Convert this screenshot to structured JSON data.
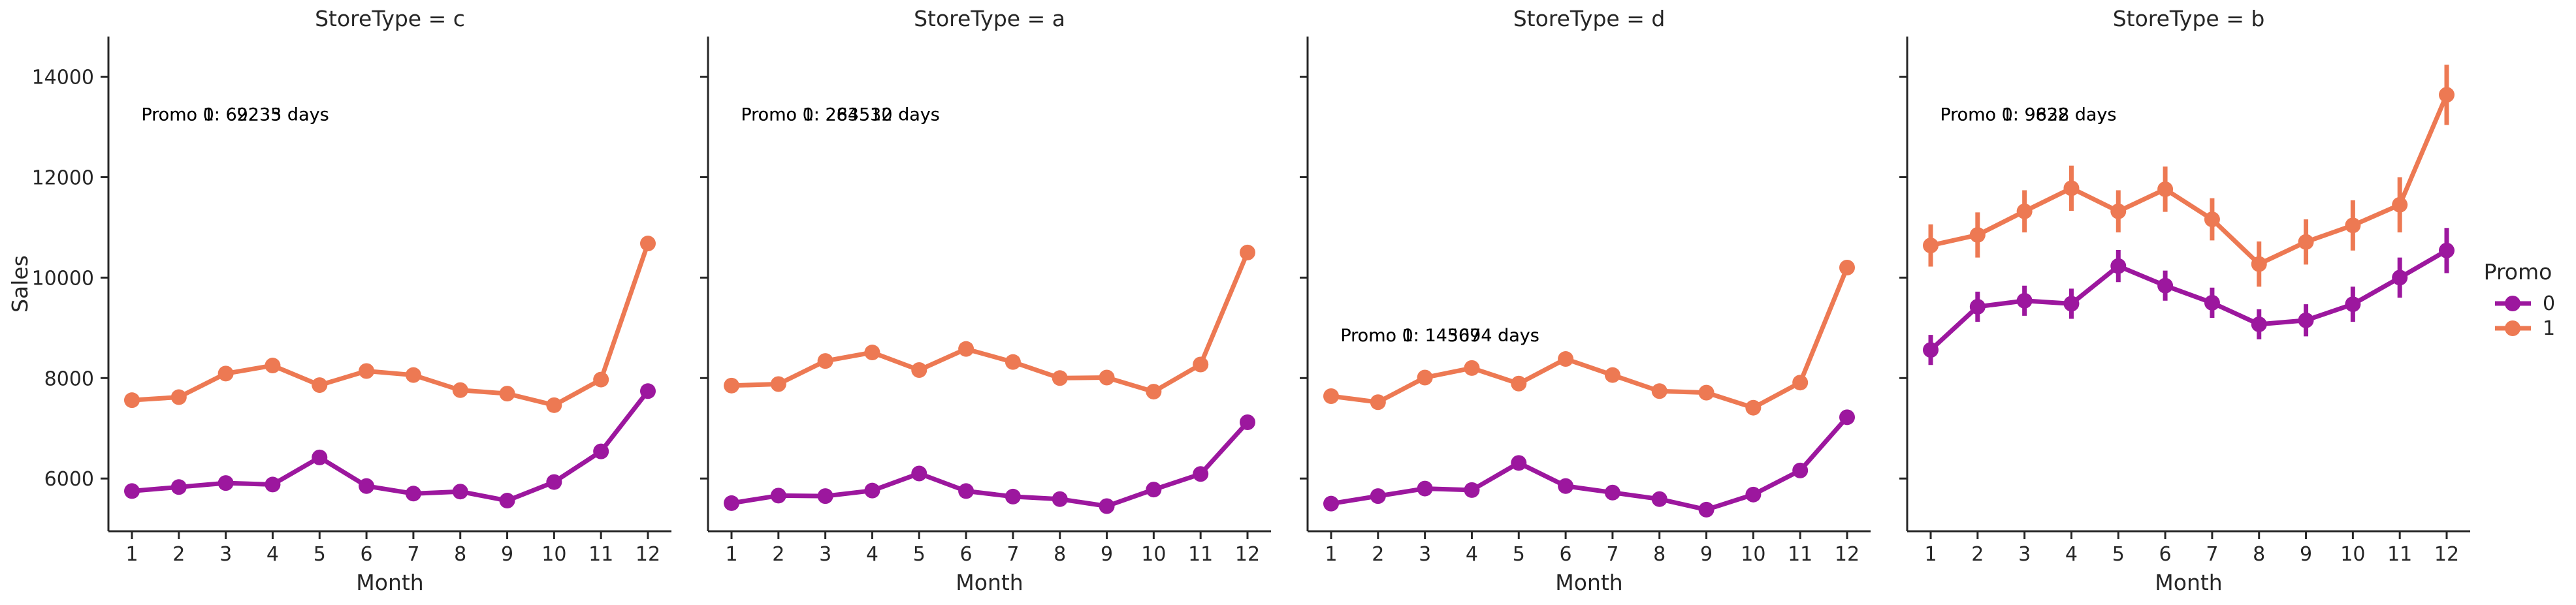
{
  "colors": {
    "promo_0": "#9c179e",
    "promo_1": "#ed7953",
    "axis": "#262626"
  },
  "legend": {
    "title": "Promo",
    "items": [
      "0",
      "1"
    ]
  },
  "chart_data": [
    {
      "type": "line",
      "title": "StoreType = c",
      "xlabel": "Month",
      "ylabel": "Sales",
      "categories": [
        "1",
        "2",
        "3",
        "4",
        "5",
        "6",
        "7",
        "8",
        "9",
        "10",
        "11",
        "12"
      ],
      "ylim": [
        4950,
        14800
      ],
      "yticks": [
        6000,
        8000,
        10000,
        12000,
        14000
      ],
      "annotations": [
        {
          "text": "Promo 0: 69235 days",
          "x": 1.2,
          "y": 13250
        },
        {
          "text": "Promo 1: 62233 days",
          "x": 1.2,
          "y": 13250
        }
      ],
      "series": [
        {
          "name": "0",
          "values": [
            5750,
            5830,
            5910,
            5880,
            6420,
            5850,
            5700,
            5740,
            5560,
            5930,
            6540,
            7740
          ],
          "err": [
            40,
            40,
            40,
            40,
            50,
            40,
            40,
            40,
            40,
            40,
            50,
            60
          ]
        },
        {
          "name": "1",
          "values": [
            7560,
            7620,
            8090,
            8250,
            7860,
            8140,
            8060,
            7760,
            7690,
            7460,
            7970,
            10680
          ],
          "err": [
            50,
            50,
            60,
            60,
            60,
            60,
            60,
            60,
            60,
            60,
            60,
            150
          ]
        }
      ]
    },
    {
      "type": "line",
      "title": "StoreType = a",
      "xlabel": "Month",
      "ylabel": "",
      "categories": [
        "1",
        "2",
        "3",
        "4",
        "5",
        "6",
        "7",
        "8",
        "9",
        "10",
        "11",
        "12"
      ],
      "ylim": [
        4950,
        14800
      ],
      "yticks": [
        6000,
        8000,
        10000,
        12000,
        14000
      ],
      "annotations": [
        {
          "text": "Promo 0: 263532 days",
          "x": 1.2,
          "y": 13250
        },
        {
          "text": "Promo 1: 284510 days",
          "x": 1.2,
          "y": 13250
        }
      ],
      "series": [
        {
          "name": "0",
          "values": [
            5510,
            5660,
            5650,
            5760,
            6100,
            5750,
            5640,
            5590,
            5450,
            5780,
            6090,
            7120
          ],
          "err": [
            20,
            20,
            20,
            20,
            30,
            20,
            20,
            20,
            20,
            20,
            30,
            40
          ]
        },
        {
          "name": "1",
          "values": [
            7850,
            7880,
            8340,
            8510,
            8160,
            8580,
            8320,
            8000,
            8010,
            7730,
            8270,
            10500
          ],
          "err": [
            30,
            30,
            30,
            30,
            30,
            30,
            30,
            30,
            30,
            30,
            30,
            60
          ]
        }
      ]
    },
    {
      "type": "line",
      "title": "StoreType = d",
      "xlabel": "Month",
      "ylabel": "",
      "categories": [
        "1",
        "2",
        "3",
        "4",
        "5",
        "6",
        "7",
        "8",
        "9",
        "10",
        "11",
        "12"
      ],
      "ylim": [
        4950,
        14800
      ],
      "yticks": [
        6000,
        8000,
        10000,
        12000,
        14000
      ],
      "annotations": [
        {
          "text": "Promo 0: 145694 days",
          "x": 1.2,
          "y": 8850
        },
        {
          "text": "Promo 1: 143074 days",
          "x": 1.2,
          "y": 8850
        }
      ],
      "series": [
        {
          "name": "0",
          "values": [
            5500,
            5650,
            5800,
            5770,
            6310,
            5850,
            5720,
            5590,
            5380,
            5680,
            6160,
            7220
          ],
          "err": [
            30,
            30,
            30,
            30,
            30,
            30,
            30,
            30,
            30,
            30,
            30,
            50
          ]
        },
        {
          "name": "1",
          "values": [
            7640,
            7520,
            8010,
            8200,
            7890,
            8380,
            8060,
            7740,
            7710,
            7410,
            7910,
            10200
          ],
          "err": [
            30,
            30,
            30,
            30,
            30,
            30,
            30,
            30,
            30,
            30,
            30,
            80
          ]
        }
      ]
    },
    {
      "type": "line",
      "title": "StoreType = b",
      "xlabel": "Month",
      "ylabel": "",
      "categories": [
        "1",
        "2",
        "3",
        "4",
        "5",
        "6",
        "7",
        "8",
        "9",
        "10",
        "11",
        "12"
      ],
      "ylim": [
        4950,
        14800
      ],
      "yticks": [
        6000,
        8000,
        10000,
        12000,
        14000
      ],
      "annotations": [
        {
          "text": "Promo 0: 9828 days",
          "x": 1.2,
          "y": 13250
        },
        {
          "text": "Promo 1: 9632 days",
          "x": 1.2,
          "y": 13250
        }
      ],
      "series": [
        {
          "name": "0",
          "values": [
            8560,
            9420,
            9540,
            9480,
            10230,
            9840,
            9500,
            9070,
            9150,
            9470,
            10000,
            10540
          ],
          "err": [
            300,
            300,
            300,
            300,
            320,
            300,
            300,
            300,
            320,
            350,
            400,
            450
          ]
        },
        {
          "name": "1",
          "values": [
            10640,
            10850,
            11320,
            11780,
            11320,
            11760,
            11160,
            10270,
            10710,
            11040,
            11450,
            13640
          ],
          "err": [
            420,
            450,
            420,
            450,
            420,
            450,
            420,
            450,
            450,
            500,
            550,
            600
          ]
        }
      ]
    }
  ]
}
